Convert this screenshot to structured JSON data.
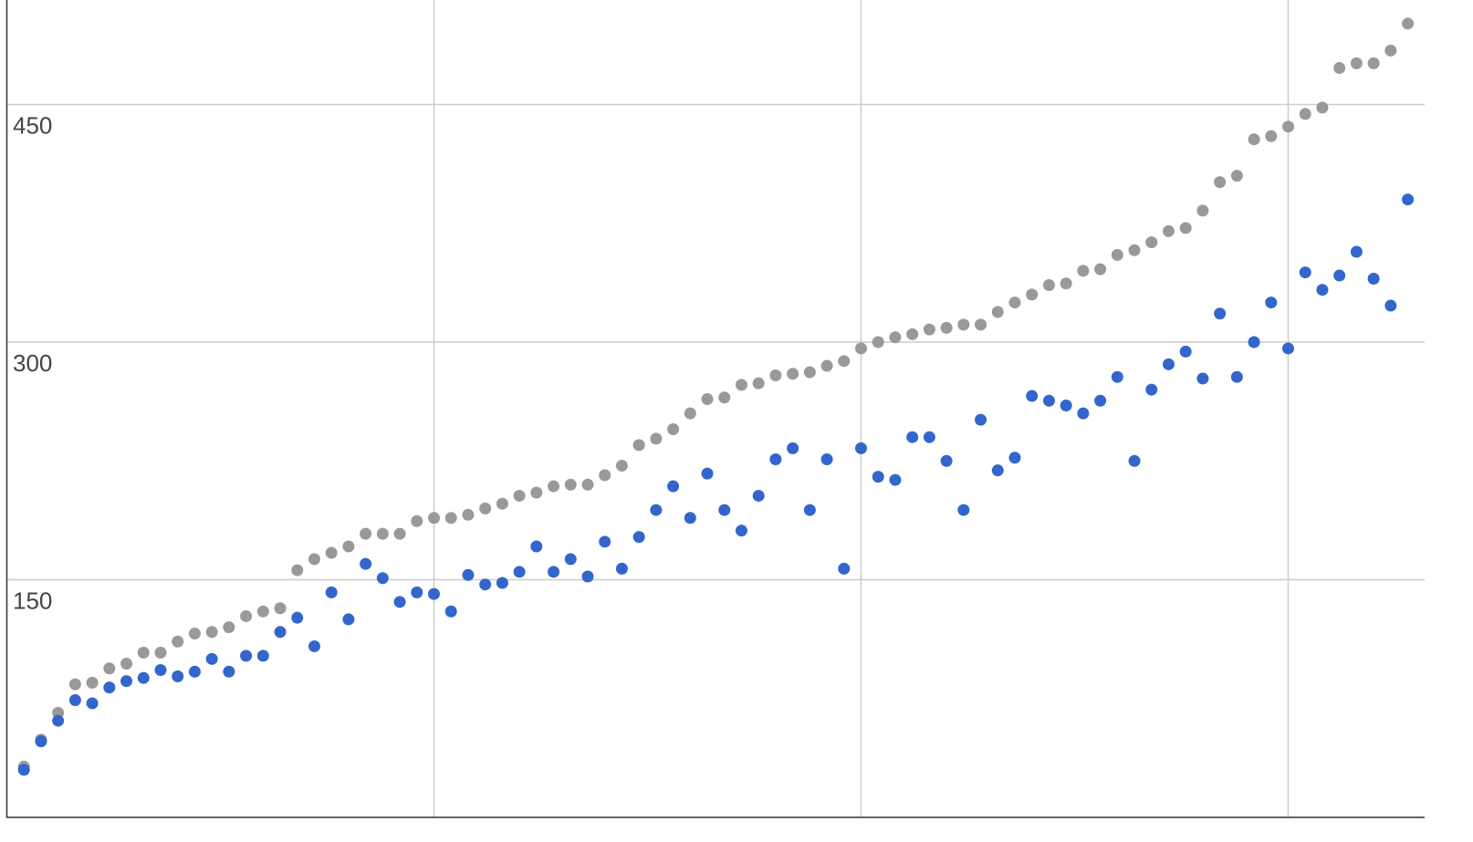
{
  "chart_data": {
    "type": "scatter",
    "x_range": [
      0,
      82.5
    ],
    "ylim": [
      0,
      515
    ],
    "y_ticks": [
      150,
      300,
      450
    ],
    "y_tick_labels": [
      "150",
      "300",
      "450"
    ],
    "x_gridlines": [
      25,
      50,
      75
    ],
    "grid": true,
    "series": [
      {
        "color": "#999999",
        "points": [
          [
            1,
            32
          ],
          [
            2,
            49
          ],
          [
            3,
            66
          ],
          [
            4,
            84
          ],
          [
            5,
            85
          ],
          [
            6,
            94
          ],
          [
            7,
            97
          ],
          [
            8,
            104
          ],
          [
            9,
            104
          ],
          [
            10,
            111
          ],
          [
            11,
            116
          ],
          [
            12,
            117
          ],
          [
            13,
            120
          ],
          [
            14,
            127
          ],
          [
            15,
            130
          ],
          [
            16,
            132
          ],
          [
            17,
            156
          ],
          [
            18,
            163
          ],
          [
            19,
            167
          ],
          [
            20,
            171
          ],
          [
            21,
            179
          ],
          [
            22,
            179
          ],
          [
            23,
            179
          ],
          [
            24,
            187
          ],
          [
            25,
            189
          ],
          [
            26,
            189
          ],
          [
            27,
            191
          ],
          [
            28,
            195
          ],
          [
            29,
            198
          ],
          [
            30,
            203
          ],
          [
            31,
            205
          ],
          [
            32,
            209
          ],
          [
            33,
            210
          ],
          [
            34,
            210
          ],
          [
            35,
            216
          ],
          [
            36,
            222
          ],
          [
            37,
            235
          ],
          [
            38,
            239
          ],
          [
            39,
            245
          ],
          [
            40,
            255
          ],
          [
            41,
            264
          ],
          [
            42,
            265
          ],
          [
            43,
            273
          ],
          [
            44,
            274
          ],
          [
            45,
            279
          ],
          [
            46,
            280
          ],
          [
            47,
            281
          ],
          [
            48,
            285
          ],
          [
            49,
            288
          ],
          [
            50,
            296
          ],
          [
            51,
            300
          ],
          [
            52,
            303
          ],
          [
            53,
            305
          ],
          [
            54,
            308
          ],
          [
            55,
            309
          ],
          [
            56,
            311
          ],
          [
            57,
            311
          ],
          [
            58,
            319
          ],
          [
            59,
            325
          ],
          [
            60,
            330
          ],
          [
            61,
            336
          ],
          [
            62,
            337
          ],
          [
            63,
            345
          ],
          [
            64,
            346
          ],
          [
            65,
            355
          ],
          [
            66,
            358
          ],
          [
            67,
            363
          ],
          [
            68,
            370
          ],
          [
            69,
            372
          ],
          [
            70,
            383
          ],
          [
            71,
            401
          ],
          [
            72,
            405
          ],
          [
            73,
            428
          ],
          [
            74,
            430
          ],
          [
            75,
            436
          ],
          [
            76,
            444
          ],
          [
            77,
            448
          ],
          [
            78,
            473
          ],
          [
            79,
            476
          ],
          [
            80,
            476
          ],
          [
            81,
            484
          ],
          [
            82,
            501
          ]
        ]
      },
      {
        "color": "#3366cc",
        "points": [
          [
            1,
            30
          ],
          [
            2,
            48
          ],
          [
            3,
            61
          ],
          [
            4,
            74
          ],
          [
            5,
            72
          ],
          [
            6,
            82
          ],
          [
            7,
            86
          ],
          [
            8,
            88
          ],
          [
            9,
            93
          ],
          [
            10,
            89
          ],
          [
            11,
            92
          ],
          [
            12,
            100
          ],
          [
            13,
            92
          ],
          [
            14,
            102
          ],
          [
            15,
            102
          ],
          [
            16,
            117
          ],
          [
            17,
            126
          ],
          [
            18,
            108
          ],
          [
            19,
            142
          ],
          [
            20,
            125
          ],
          [
            21,
            160
          ],
          [
            22,
            151
          ],
          [
            23,
            136
          ],
          [
            24,
            142
          ],
          [
            25,
            141
          ],
          [
            26,
            130
          ],
          [
            27,
            153
          ],
          [
            28,
            147
          ],
          [
            29,
            148
          ],
          [
            30,
            155
          ],
          [
            31,
            171
          ],
          [
            32,
            155
          ],
          [
            33,
            163
          ],
          [
            34,
            152
          ],
          [
            35,
            174
          ],
          [
            36,
            157
          ],
          [
            37,
            177
          ],
          [
            38,
            194
          ],
          [
            39,
            209
          ],
          [
            40,
            189
          ],
          [
            41,
            217
          ],
          [
            42,
            194
          ],
          [
            43,
            181
          ],
          [
            44,
            203
          ],
          [
            45,
            226
          ],
          [
            46,
            233
          ],
          [
            47,
            194
          ],
          [
            48,
            226
          ],
          [
            49,
            157
          ],
          [
            50,
            233
          ],
          [
            51,
            215
          ],
          [
            52,
            213
          ],
          [
            53,
            240
          ],
          [
            54,
            240
          ],
          [
            55,
            225
          ],
          [
            56,
            194
          ],
          [
            57,
            251
          ],
          [
            58,
            219
          ],
          [
            59,
            227
          ],
          [
            60,
            266
          ],
          [
            61,
            263
          ],
          [
            62,
            260
          ],
          [
            63,
            255
          ],
          [
            64,
            263
          ],
          [
            65,
            278
          ],
          [
            66,
            225
          ],
          [
            67,
            270
          ],
          [
            68,
            286
          ],
          [
            69,
            294
          ],
          [
            70,
            277
          ],
          [
            71,
            318
          ],
          [
            72,
            278
          ],
          [
            73,
            300
          ],
          [
            74,
            325
          ],
          [
            75,
            296
          ],
          [
            76,
            344
          ],
          [
            77,
            333
          ],
          [
            78,
            342
          ],
          [
            79,
            357
          ],
          [
            80,
            340
          ],
          [
            81,
            323
          ],
          [
            82,
            390
          ]
        ]
      }
    ]
  }
}
